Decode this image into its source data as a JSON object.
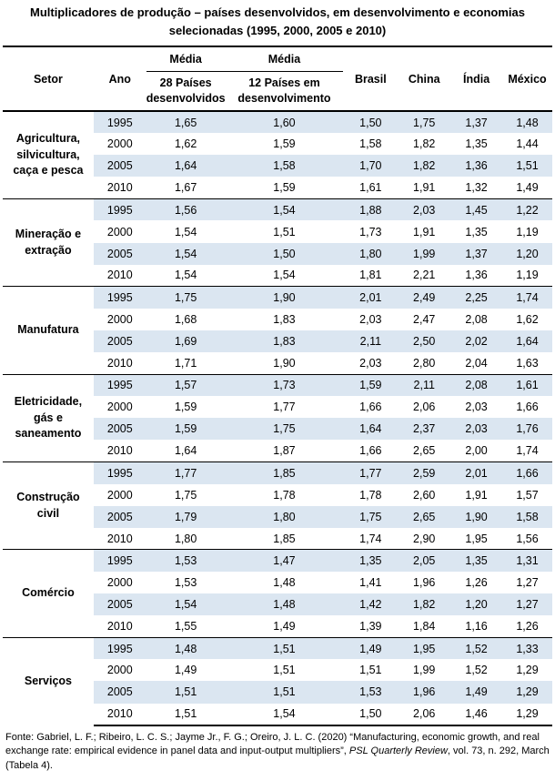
{
  "title_line1": "Multiplicadores de produção – países desenvolvidos, em desenvolvimento e economias",
  "title_line2": "selecionadas (1995, 2000, 2005 e 2010)",
  "headers": {
    "setor": "Setor",
    "ano": "Ano",
    "media1": "Média",
    "media2": "Média",
    "dev_l1": "28 Países",
    "dev_l2": "desenvolvidos",
    "emg_l1": "12 Países em",
    "emg_l2": "desenvolvimento",
    "brasil": "Brasil",
    "china": "China",
    "india": "Índia",
    "mexico": "México"
  },
  "sectors": [
    {
      "name_lines": [
        "Agricultura,",
        "silvicultura,",
        "caça e pesca"
      ],
      "rows": [
        [
          "1995",
          "1,65",
          "1,60",
          "1,50",
          "1,75",
          "1,37",
          "1,48"
        ],
        [
          "2000",
          "1,62",
          "1,59",
          "1,58",
          "1,82",
          "1,35",
          "1,44"
        ],
        [
          "2005",
          "1,64",
          "1,58",
          "1,70",
          "1,82",
          "1,36",
          "1,51"
        ],
        [
          "2010",
          "1,67",
          "1,59",
          "1,61",
          "1,91",
          "1,32",
          "1,49"
        ]
      ]
    },
    {
      "name_lines": [
        "Mineração e",
        "extração"
      ],
      "rows": [
        [
          "1995",
          "1,56",
          "1,54",
          "1,88",
          "2,03",
          "1,45",
          "1,22"
        ],
        [
          "2000",
          "1,54",
          "1,51",
          "1,73",
          "1,91",
          "1,35",
          "1,19"
        ],
        [
          "2005",
          "1,54",
          "1,50",
          "1,80",
          "1,99",
          "1,37",
          "1,20"
        ],
        [
          "2010",
          "1,54",
          "1,54",
          "1,81",
          "2,21",
          "1,36",
          "1,19"
        ]
      ]
    },
    {
      "name_lines": [
        "Manufatura"
      ],
      "rows": [
        [
          "1995",
          "1,75",
          "1,90",
          "2,01",
          "2,49",
          "2,25",
          "1,74"
        ],
        [
          "2000",
          "1,68",
          "1,83",
          "2,03",
          "2,47",
          "2,08",
          "1,62"
        ],
        [
          "2005",
          "1,69",
          "1,83",
          "2,11",
          "2,50",
          "2,02",
          "1,64"
        ],
        [
          "2010",
          "1,71",
          "1,90",
          "2,03",
          "2,80",
          "2,04",
          "1,63"
        ]
      ]
    },
    {
      "name_lines": [
        "Eletricidade,",
        "gás e",
        "saneamento"
      ],
      "rows": [
        [
          "1995",
          "1,57",
          "1,73",
          "1,59",
          "2,11",
          "2,08",
          "1,61"
        ],
        [
          "2000",
          "1,59",
          "1,77",
          "1,66",
          "2,06",
          "2,03",
          "1,66"
        ],
        [
          "2005",
          "1,59",
          "1,75",
          "1,64",
          "2,37",
          "2,03",
          "1,76"
        ],
        [
          "2010",
          "1,64",
          "1,87",
          "1,66",
          "2,65",
          "2,00",
          "1,74"
        ]
      ]
    },
    {
      "name_lines": [
        "Construção",
        "civil"
      ],
      "rows": [
        [
          "1995",
          "1,77",
          "1,85",
          "1,77",
          "2,59",
          "2,01",
          "1,66"
        ],
        [
          "2000",
          "1,75",
          "1,78",
          "1,78",
          "2,60",
          "1,91",
          "1,57"
        ],
        [
          "2005",
          "1,79",
          "1,80",
          "1,75",
          "2,65",
          "1,90",
          "1,58"
        ],
        [
          "2010",
          "1,80",
          "1,85",
          "1,74",
          "2,90",
          "1,95",
          "1,56"
        ]
      ]
    },
    {
      "name_lines": [
        "Comércio"
      ],
      "rows": [
        [
          "1995",
          "1,53",
          "1,47",
          "1,35",
          "2,05",
          "1,35",
          "1,31"
        ],
        [
          "2000",
          "1,53",
          "1,48",
          "1,41",
          "1,96",
          "1,26",
          "1,27"
        ],
        [
          "2005",
          "1,54",
          "1,48",
          "1,42",
          "1,82",
          "1,20",
          "1,27"
        ],
        [
          "2010",
          "1,55",
          "1,49",
          "1,39",
          "1,84",
          "1,16",
          "1,26"
        ]
      ]
    },
    {
      "name_lines": [
        "Serviços"
      ],
      "rows": [
        [
          "1995",
          "1,48",
          "1,51",
          "1,49",
          "1,95",
          "1,52",
          "1,33"
        ],
        [
          "2000",
          "1,49",
          "1,51",
          "1,51",
          "1,99",
          "1,52",
          "1,29"
        ],
        [
          "2005",
          "1,51",
          "1,51",
          "1,53",
          "1,96",
          "1,49",
          "1,29"
        ],
        [
          "2010",
          "1,51",
          "1,54",
          "1,50",
          "2,06",
          "1,46",
          "1,29"
        ]
      ]
    }
  ],
  "footer": {
    "part1": "Fonte: Gabriel, L. F.; Ribeiro, L. C. S.; Jayme Jr., F. G.; Oreiro, J. L. C. (2020) “Manufacturing, economic growth, and real exchange rate: empirical evidence in panel data and input-output multipliers”, ",
    "journal": "PSL Quarterly Review",
    "part2": ", vol. 73, n. 292, March (Tabela 4)."
  },
  "colors": {
    "row_shade": "#dbe6f1",
    "rule": "#000000"
  }
}
